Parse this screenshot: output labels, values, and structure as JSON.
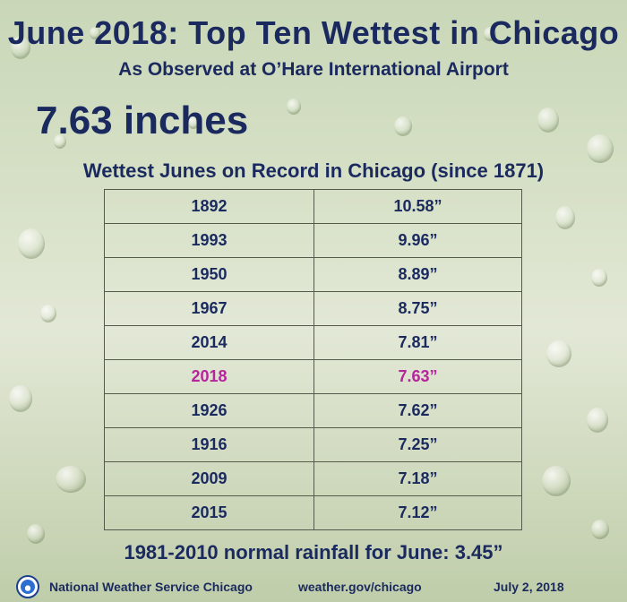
{
  "header": {
    "title": "June 2018:  Top Ten Wettest in Chicago",
    "subtitle": "As Observed at  O’Hare International Airport",
    "total": "7.63 inches"
  },
  "table": {
    "title": "Wettest Junes on Record in Chicago (since 1871)",
    "highlight_color": "#b5259b",
    "rows": [
      {
        "year": "1892",
        "amount": "10.58”"
      },
      {
        "year": "1993",
        "amount": "9.96”"
      },
      {
        "year": "1950",
        "amount": "8.89”"
      },
      {
        "year": "1967",
        "amount": "8.75”"
      },
      {
        "year": "2014",
        "amount": "7.81”"
      },
      {
        "year": "2018",
        "amount": "7.63”"
      },
      {
        "year": "1926",
        "amount": "7.62”"
      },
      {
        "year": "1916",
        "amount": "7.25”"
      },
      {
        "year": "2009",
        "amount": "7.18”"
      },
      {
        "year": "2015",
        "amount": "7.12”"
      }
    ]
  },
  "normal_text": "1981-2010 normal rainfall for June:  3.45”",
  "footer": {
    "logo_icon": "nws-logo-icon",
    "org": "National Weather Service Chicago",
    "url": "weather.gov/chicago",
    "date": "July 2, 2018"
  }
}
